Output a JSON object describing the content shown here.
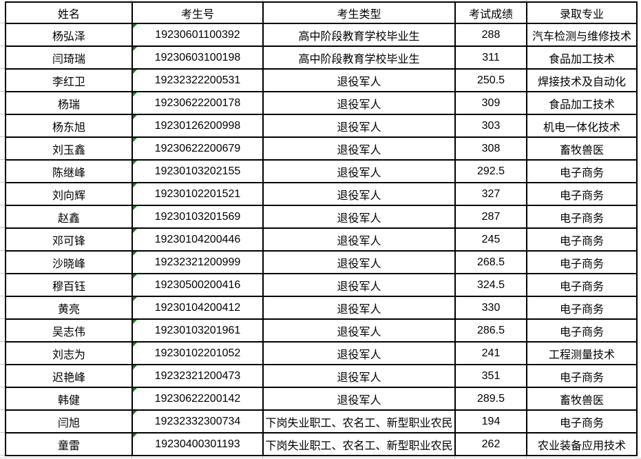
{
  "table": {
    "columns": [
      "姓名",
      "考生号",
      "考生类型",
      "考试成绩",
      "录取专业"
    ],
    "column_keys": [
      "name",
      "candidate-no",
      "candidate-type",
      "score",
      "major"
    ],
    "rows": [
      [
        "杨弘泽",
        "19230601100392",
        "高中阶段教育学校毕业生",
        "288",
        "汽车检测与维修技术"
      ],
      [
        "闫琦瑞",
        "19230603100198",
        "高中阶段教育学校毕业生",
        "311",
        "食品加工技术"
      ],
      [
        "李红卫",
        "19232322200531",
        "退役军人",
        "250.5",
        "焊接技术及自动化"
      ],
      [
        "杨瑞",
        "19230622200178",
        "退役军人",
        "309",
        "食品加工技术"
      ],
      [
        "杨东旭",
        "19230126200998",
        "退役军人",
        "303",
        "机电一体化技术"
      ],
      [
        "刘玉鑫",
        "19230622200679",
        "退役军人",
        "308",
        "畜牧兽医"
      ],
      [
        "陈继峰",
        "19230103202155",
        "退役军人",
        "292.5",
        "电子商务"
      ],
      [
        "刘向辉",
        "19230102201521",
        "退役军人",
        "327",
        "电子商务"
      ],
      [
        "赵鑫",
        "19230103201569",
        "退役军人",
        "287",
        "电子商务"
      ],
      [
        "邓可锋",
        "19230104200446",
        "退役军人",
        "245",
        "电子商务"
      ],
      [
        "沙晓峰",
        "19232321200999",
        "退役军人",
        "268.5",
        "电子商务"
      ],
      [
        "穆百钰",
        "19230500200416",
        "退役军人",
        "324.5",
        "电子商务"
      ],
      [
        "黄亮",
        "19230104200412",
        "退役军人",
        "330",
        "电子商务"
      ],
      [
        "吴志伟",
        "19230103201961",
        "退役军人",
        "286.5",
        "电子商务"
      ],
      [
        "刘志为",
        "19230102201052",
        "退役军人",
        "241",
        "工程测量技术"
      ],
      [
        "迟艳峰",
        "19232321200473",
        "退役军人",
        "351",
        "电子商务"
      ],
      [
        "韩健",
        "19230622200142",
        "退役军人",
        "289.5",
        "畜牧兽医"
      ],
      [
        "闫旭",
        "19232332300734",
        "下岗失业职工、农名工、新型职业农民",
        "194",
        "电子商务"
      ],
      [
        "童雷",
        "19230400301193",
        "下岗失业职工、农名工、新型职业农民",
        "262",
        "农业装备应用技术"
      ]
    ],
    "colors": {
      "border": "#000000",
      "text": "#000000",
      "background": "#ffffff",
      "text_number_indicator": "#008f00",
      "gridline_remnant": "#c6c6c6"
    }
  }
}
